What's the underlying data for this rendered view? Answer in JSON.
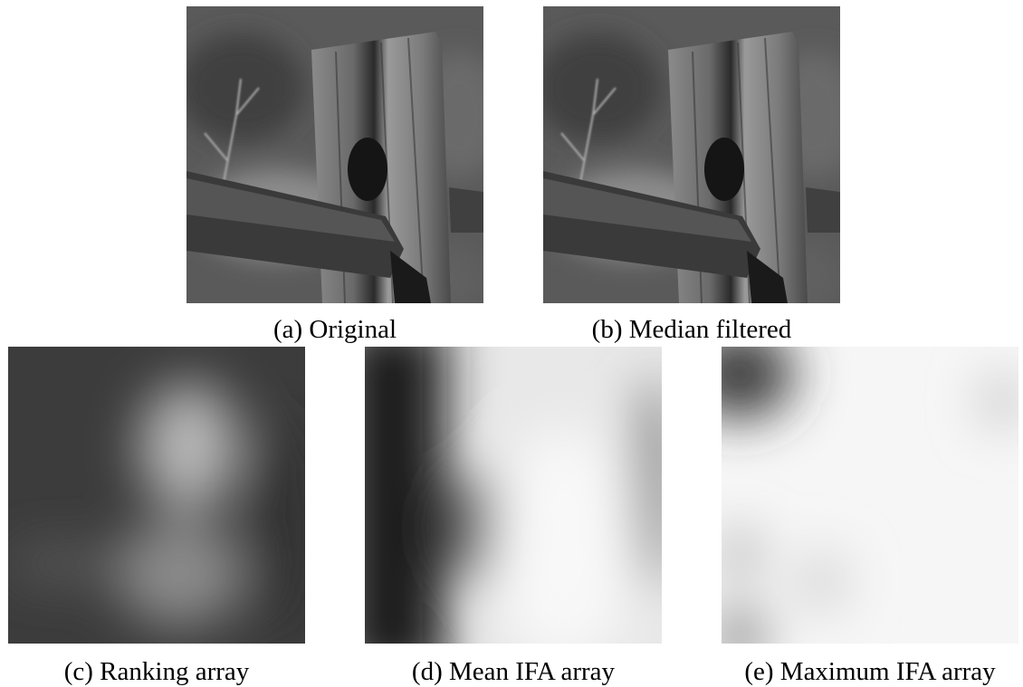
{
  "panels": [
    {
      "caption": "(a) Original"
    },
    {
      "caption": "(b) Median filtered"
    },
    {
      "caption": "(c) Ranking array"
    },
    {
      "caption": "(d) Mean IFA array"
    },
    {
      "caption": "(e) Maximum IFA array"
    }
  ]
}
